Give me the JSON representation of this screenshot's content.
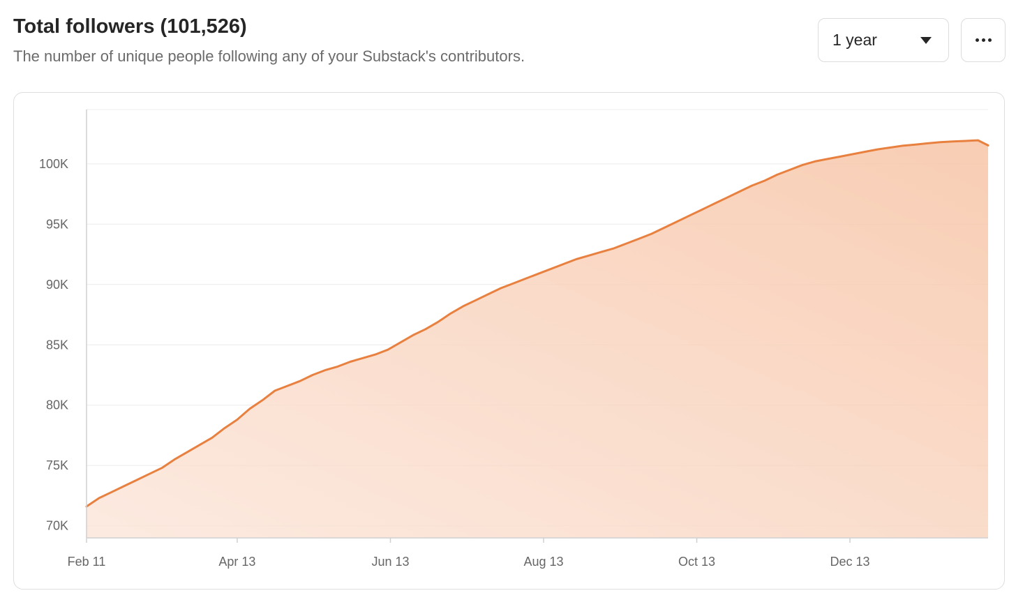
{
  "header": {
    "title": "Total followers (101,526)",
    "subtitle": "The number of unique people following any of your Substack's contributors."
  },
  "controls": {
    "range_value": "1 year",
    "range_icon": "caret-down-icon",
    "more_icon": "more-horizontal-icon"
  },
  "colors": {
    "line": "#e8803f",
    "fill": "#f8cdb3",
    "grid": "#ececec",
    "axis": "#d0d0d0"
  },
  "chart_data": {
    "type": "area",
    "title": "Total followers (101,526)",
    "xlabel": "",
    "ylabel": "",
    "grid": true,
    "x_range": [
      0,
      359
    ],
    "ylim": [
      69000,
      104500
    ],
    "y_ticks": [
      {
        "value": 70000,
        "label": "70K"
      },
      {
        "value": 75000,
        "label": "75K"
      },
      {
        "value": 80000,
        "label": "80K"
      },
      {
        "value": 85000,
        "label": "85K"
      },
      {
        "value": 90000,
        "label": "90K"
      },
      {
        "value": 95000,
        "label": "95K"
      },
      {
        "value": 100000,
        "label": "100K"
      }
    ],
    "x_ticks": [
      {
        "day": 0,
        "label": "Feb 11"
      },
      {
        "day": 60,
        "label": "Apr 13"
      },
      {
        "day": 121,
        "label": "Jun 13"
      },
      {
        "day": 182,
        "label": "Aug 13"
      },
      {
        "day": 243,
        "label": "Oct 13"
      },
      {
        "day": 304,
        "label": "Dec 13"
      }
    ],
    "series": [
      {
        "name": "Total followers",
        "points": [
          [
            0,
            71600
          ],
          [
            5,
            72300
          ],
          [
            10,
            72800
          ],
          [
            15,
            73300
          ],
          [
            20,
            73800
          ],
          [
            25,
            74300
          ],
          [
            30,
            74800
          ],
          [
            35,
            75500
          ],
          [
            40,
            76100
          ],
          [
            45,
            76700
          ],
          [
            50,
            77300
          ],
          [
            55,
            78100
          ],
          [
            60,
            78800
          ],
          [
            65,
            79700
          ],
          [
            70,
            80400
          ],
          [
            75,
            81200
          ],
          [
            80,
            81600
          ],
          [
            85,
            82000
          ],
          [
            90,
            82500
          ],
          [
            95,
            82900
          ],
          [
            100,
            83200
          ],
          [
            105,
            83600
          ],
          [
            110,
            83900
          ],
          [
            115,
            84200
          ],
          [
            120,
            84600
          ],
          [
            125,
            85200
          ],
          [
            130,
            85800
          ],
          [
            135,
            86300
          ],
          [
            140,
            86900
          ],
          [
            145,
            87600
          ],
          [
            150,
            88200
          ],
          [
            155,
            88700
          ],
          [
            160,
            89200
          ],
          [
            165,
            89700
          ],
          [
            170,
            90100
          ],
          [
            175,
            90500
          ],
          [
            180,
            90900
          ],
          [
            185,
            91300
          ],
          [
            190,
            91700
          ],
          [
            195,
            92100
          ],
          [
            200,
            92400
          ],
          [
            205,
            92700
          ],
          [
            210,
            93000
          ],
          [
            215,
            93400
          ],
          [
            220,
            93800
          ],
          [
            225,
            94200
          ],
          [
            230,
            94700
          ],
          [
            235,
            95200
          ],
          [
            240,
            95700
          ],
          [
            245,
            96200
          ],
          [
            250,
            96700
          ],
          [
            255,
            97200
          ],
          [
            260,
            97700
          ],
          [
            265,
            98200
          ],
          [
            270,
            98600
          ],
          [
            275,
            99100
          ],
          [
            280,
            99500
          ],
          [
            285,
            99900
          ],
          [
            290,
            100200
          ],
          [
            295,
            100400
          ],
          [
            300,
            100600
          ],
          [
            305,
            100800
          ],
          [
            310,
            101000
          ],
          [
            315,
            101200
          ],
          [
            320,
            101350
          ],
          [
            325,
            101500
          ],
          [
            330,
            101600
          ],
          [
            335,
            101700
          ],
          [
            340,
            101800
          ],
          [
            345,
            101850
          ],
          [
            350,
            101900
          ],
          [
            355,
            101950
          ],
          [
            359,
            101526
          ]
        ]
      }
    ]
  }
}
